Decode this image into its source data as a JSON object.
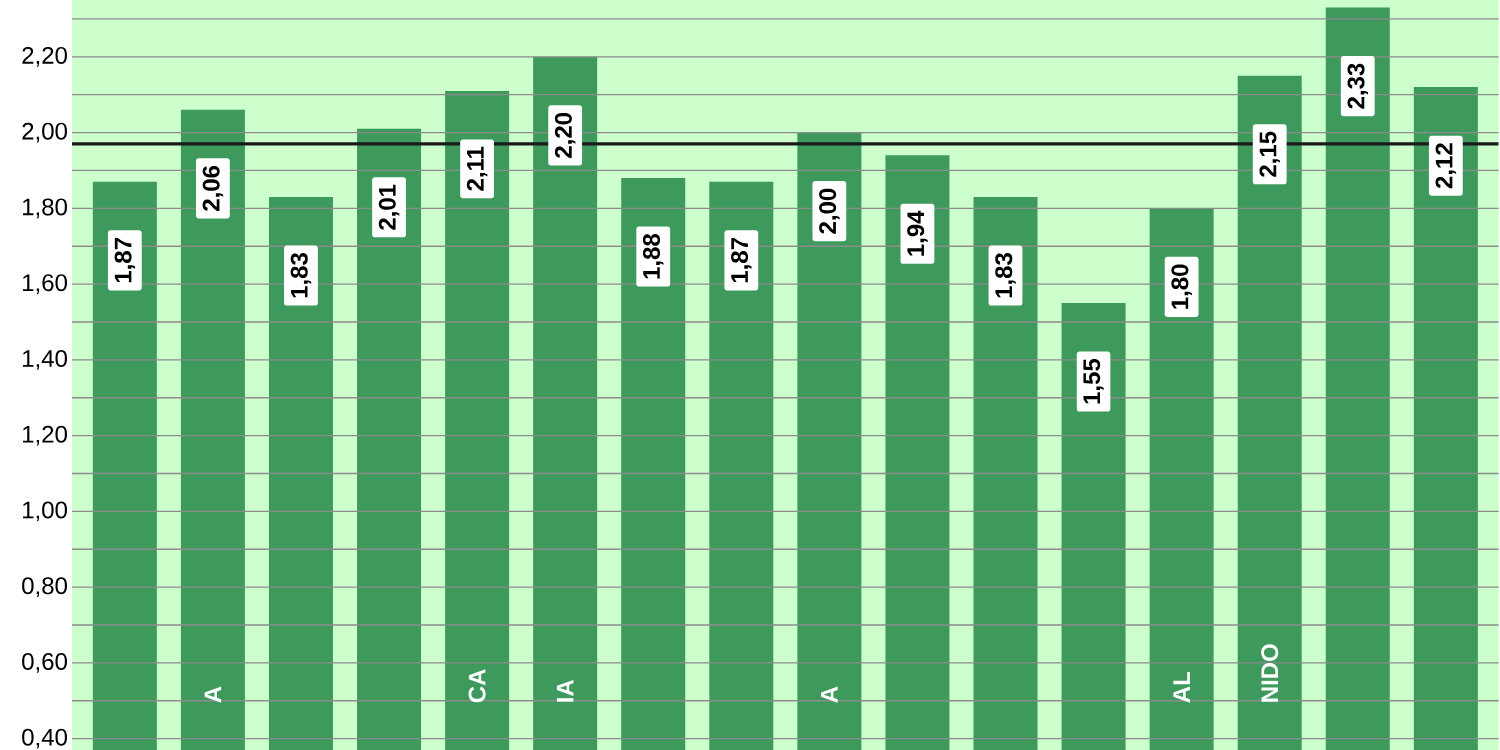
{
  "chart_data": {
    "type": "bar",
    "categories": [
      null,
      "A",
      null,
      null,
      "CA",
      "IA",
      null,
      null,
      "A",
      null,
      null,
      null,
      "AL",
      "NIDO",
      null,
      null
    ],
    "values": [
      1.87,
      2.06,
      1.83,
      2.01,
      2.11,
      2.2,
      1.88,
      1.87,
      2.0,
      1.94,
      1.83,
      1.55,
      1.8,
      2.15,
      2.33,
      2.12
    ],
    "color": "#3d9a5c",
    "ylim": [
      0.37,
      2.35
    ],
    "yticks": [
      {
        "value": 0.4,
        "label": "0,40"
      },
      {
        "value": 0.5,
        "label": null
      },
      {
        "value": 0.6,
        "label": "0,60"
      },
      {
        "value": 0.7,
        "label": null
      },
      {
        "value": 0.8,
        "label": "0,80"
      },
      {
        "value": 0.9,
        "label": null
      },
      {
        "value": 1.0,
        "label": "1,00"
      },
      {
        "value": 1.1,
        "label": null
      },
      {
        "value": 1.2,
        "label": "1,20"
      },
      {
        "value": 1.3,
        "label": null
      },
      {
        "value": 1.4,
        "label": "1,40"
      },
      {
        "value": 1.5,
        "label": null
      },
      {
        "value": 1.6,
        "label": "1,60"
      },
      {
        "value": 1.7,
        "label": null
      },
      {
        "value": 1.8,
        "label": "1,80"
      },
      {
        "value": 1.9,
        "label": null
      },
      {
        "value": 2.0,
        "label": "2,00"
      },
      {
        "value": 2.1,
        "label": null
      },
      {
        "value": 2.2,
        "label": "2,20"
      },
      {
        "value": 2.3,
        "label": null
      }
    ],
    "grid": "y",
    "value_labels": [
      "1,87",
      "2,06",
      "1,83",
      "2,01",
      "2,11",
      "2,20",
      "1,88",
      "1,87",
      "2,00",
      "1,94",
      "1,83",
      "1,55",
      "1,80",
      "2,15",
      "2,33",
      "2,12"
    ],
    "ref_lines": [
      {
        "axis": "y",
        "value": 1.97,
        "color": "#1a1a1a"
      }
    ]
  }
}
